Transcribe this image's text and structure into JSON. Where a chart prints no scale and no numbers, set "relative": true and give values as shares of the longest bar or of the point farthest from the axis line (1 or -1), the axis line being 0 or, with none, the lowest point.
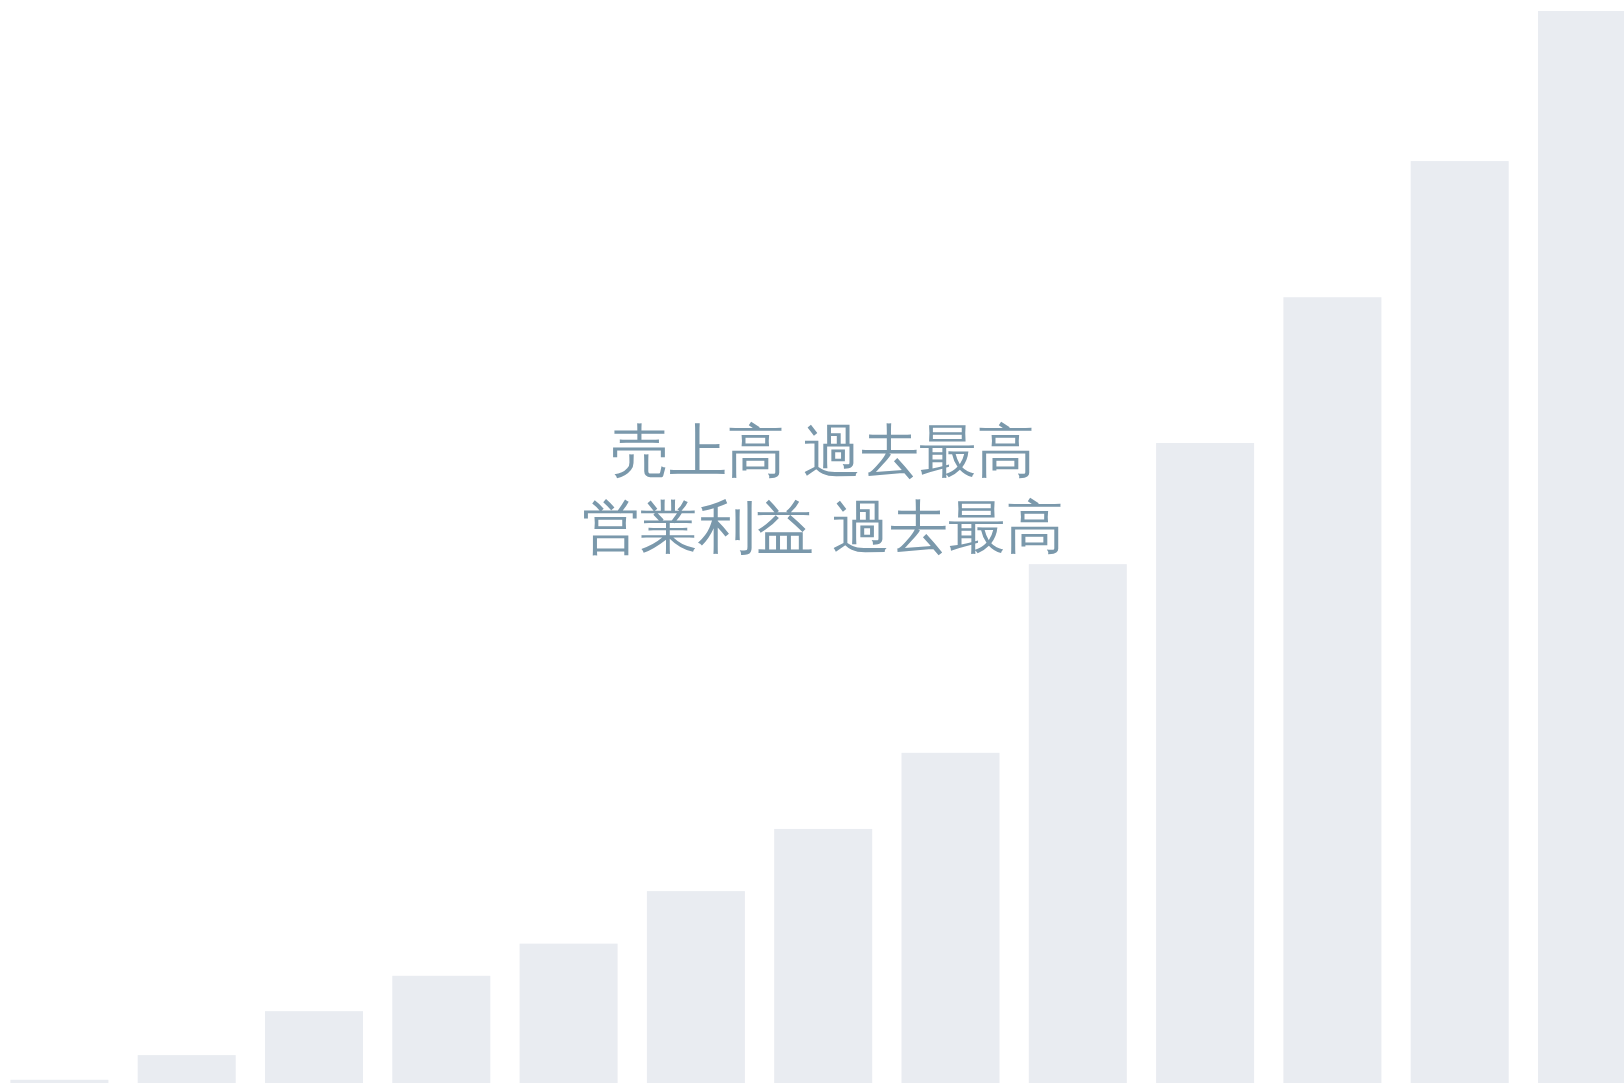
{
  "chart_data": {
    "type": "bar",
    "relative": true,
    "title": "売上高 過去最高",
    "subtitle": "営業利益 過去最高",
    "categories": [
      null,
      null,
      null,
      null,
      null,
      null,
      null,
      null,
      null,
      null,
      null,
      null,
      null
    ],
    "values": [
      0.003,
      0.026,
      0.067,
      0.1,
      0.13,
      0.179,
      0.237,
      0.308,
      0.484,
      0.597,
      0.733,
      0.86,
      1
    ],
    "color": "#e9ecf1"
  }
}
